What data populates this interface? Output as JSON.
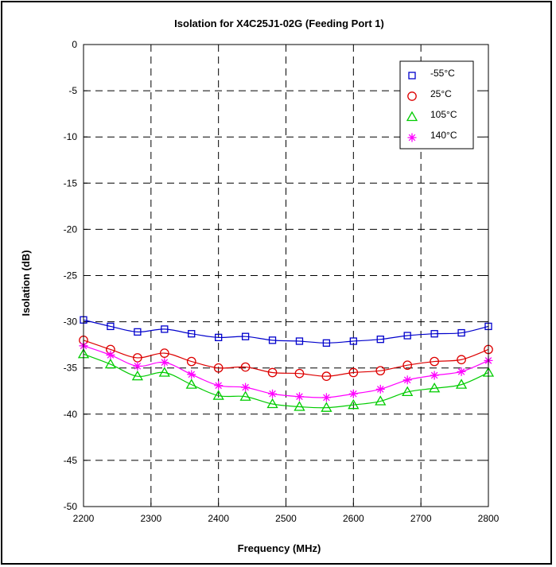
{
  "chart_data": {
    "type": "line",
    "title": "Isolation for X4C25J1-02G (Feeding Port 1)",
    "xlabel": "Frequency (MHz)",
    "ylabel": "Isolation (dB)",
    "xlim": [
      2200,
      2800
    ],
    "ylim": [
      -50,
      0
    ],
    "xticks": [
      2200,
      2300,
      2400,
      2500,
      2600,
      2700,
      2800
    ],
    "yticks": [
      0,
      -5,
      -10,
      -15,
      -20,
      -25,
      -30,
      -35,
      -40,
      -45,
      -50
    ],
    "grid": true,
    "legend_position": "top-right",
    "x": [
      2200,
      2240,
      2280,
      2320,
      2360,
      2400,
      2440,
      2480,
      2520,
      2560,
      2600,
      2640,
      2680,
      2720,
      2760,
      2800
    ],
    "series": [
      {
        "name": "-55°C",
        "color": "#0000cc",
        "marker": "square",
        "values": [
          -29.8,
          -30.5,
          -31.1,
          -30.8,
          -31.3,
          -31.7,
          -31.6,
          -32.0,
          -32.1,
          -32.3,
          -32.1,
          -31.9,
          -31.5,
          -31.3,
          -31.2,
          -30.5
        ]
      },
      {
        "name": "25°C",
        "color": "#dd0000",
        "marker": "circle",
        "values": [
          -32.0,
          -33.0,
          -33.9,
          -33.4,
          -34.3,
          -35.0,
          -34.9,
          -35.5,
          -35.6,
          -35.9,
          -35.5,
          -35.3,
          -34.7,
          -34.3,
          -34.1,
          -33.0
        ]
      },
      {
        "name": "105°C",
        "color": "#00cc00",
        "marker": "triangle",
        "values": [
          -33.5,
          -34.6,
          -35.9,
          -35.5,
          -36.8,
          -38.0,
          -38.1,
          -38.9,
          -39.2,
          -39.3,
          -39.0,
          -38.6,
          -37.6,
          -37.2,
          -36.8,
          -35.5
        ]
      },
      {
        "name": "140°C",
        "color": "#ff00ff",
        "marker": "asterisk",
        "values": [
          -32.6,
          -33.6,
          -34.8,
          -34.4,
          -35.7,
          -36.9,
          -37.1,
          -37.8,
          -38.1,
          -38.2,
          -37.8,
          -37.3,
          -36.3,
          -35.8,
          -35.4,
          -34.2
        ]
      }
    ]
  }
}
